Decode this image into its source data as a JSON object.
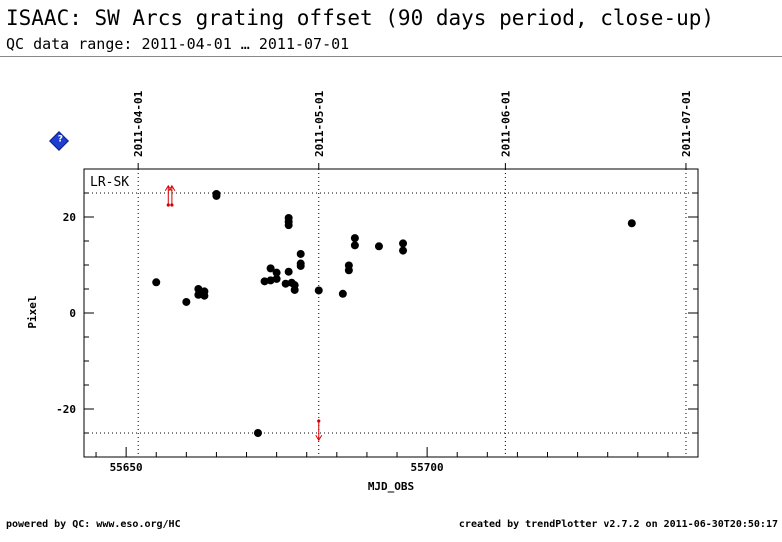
{
  "header": {
    "title": "ISAAC: SW Arcs grating offset (90 days period, close-up)",
    "subtitle": "QC data range: 2011-04-01 … 2011-07-01"
  },
  "footer": {
    "left": "powered by QC: www.eso.org/HC",
    "right": "created by trendPlotter v2.7.2 on 2011-06-30T20:50:17"
  },
  "help_icon": "?",
  "chart_data": {
    "type": "scatter",
    "xlabel": "MJD_OBS",
    "ylabel": "Pixel",
    "xlim": [
      55643,
      55745
    ],
    "ylim": [
      -30,
      30
    ],
    "x_ticks": [
      55650,
      55700
    ],
    "y_ticks": [
      -20,
      0,
      20
    ],
    "date_axis": {
      "labels": [
        "2011-04-01",
        "2011-05-01",
        "2011-06-01",
        "2011-07-01"
      ],
      "mjd": [
        55652,
        55682,
        55713,
        55743
      ]
    },
    "threshold_lines": [
      25,
      -25
    ],
    "annotation": "LR-SK",
    "grid": false,
    "point_color": "#000000",
    "outlier_color": "#d40000",
    "points": [
      {
        "x": 55655,
        "y": 6.4
      },
      {
        "x": 55660,
        "y": 2.3
      },
      {
        "x": 55662,
        "y": 3.8
      },
      {
        "x": 55662,
        "y": 5.0
      },
      {
        "x": 55663,
        "y": 3.6
      },
      {
        "x": 55663,
        "y": 4.5
      },
      {
        "x": 55665,
        "y": 24.4
      },
      {
        "x": 55665,
        "y": 24.8
      },
      {
        "x": 55671.9,
        "y": -25.0
      },
      {
        "x": 55673,
        "y": 6.6
      },
      {
        "x": 55674,
        "y": 6.8
      },
      {
        "x": 55674,
        "y": 9.3
      },
      {
        "x": 55675,
        "y": 7.1
      },
      {
        "x": 55675,
        "y": 8.4
      },
      {
        "x": 55676.5,
        "y": 6.1
      },
      {
        "x": 55677,
        "y": 8.6
      },
      {
        "x": 55677,
        "y": 18.3
      },
      {
        "x": 55677,
        "y": 19.0
      },
      {
        "x": 55677,
        "y": 19.8
      },
      {
        "x": 55677.5,
        "y": 6.3
      },
      {
        "x": 55678,
        "y": 4.8
      },
      {
        "x": 55678,
        "y": 5.8
      },
      {
        "x": 55679,
        "y": 9.8
      },
      {
        "x": 55679,
        "y": 10.3
      },
      {
        "x": 55679,
        "y": 12.3
      },
      {
        "x": 55682,
        "y": 4.7
      },
      {
        "x": 55686,
        "y": 4.0
      },
      {
        "x": 55687,
        "y": 8.9
      },
      {
        "x": 55687,
        "y": 9.9
      },
      {
        "x": 55688,
        "y": 14.1
      },
      {
        "x": 55688,
        "y": 15.6
      },
      {
        "x": 55692,
        "y": 13.9
      },
      {
        "x": 55696,
        "y": 13.0
      },
      {
        "x": 55696,
        "y": 14.5
      },
      {
        "x": 55734,
        "y": 18.7
      }
    ],
    "outliers": [
      {
        "x": 55657,
        "direction": "up"
      },
      {
        "x": 55657.6,
        "direction": "up"
      },
      {
        "x": 55682,
        "direction": "down"
      }
    ]
  }
}
